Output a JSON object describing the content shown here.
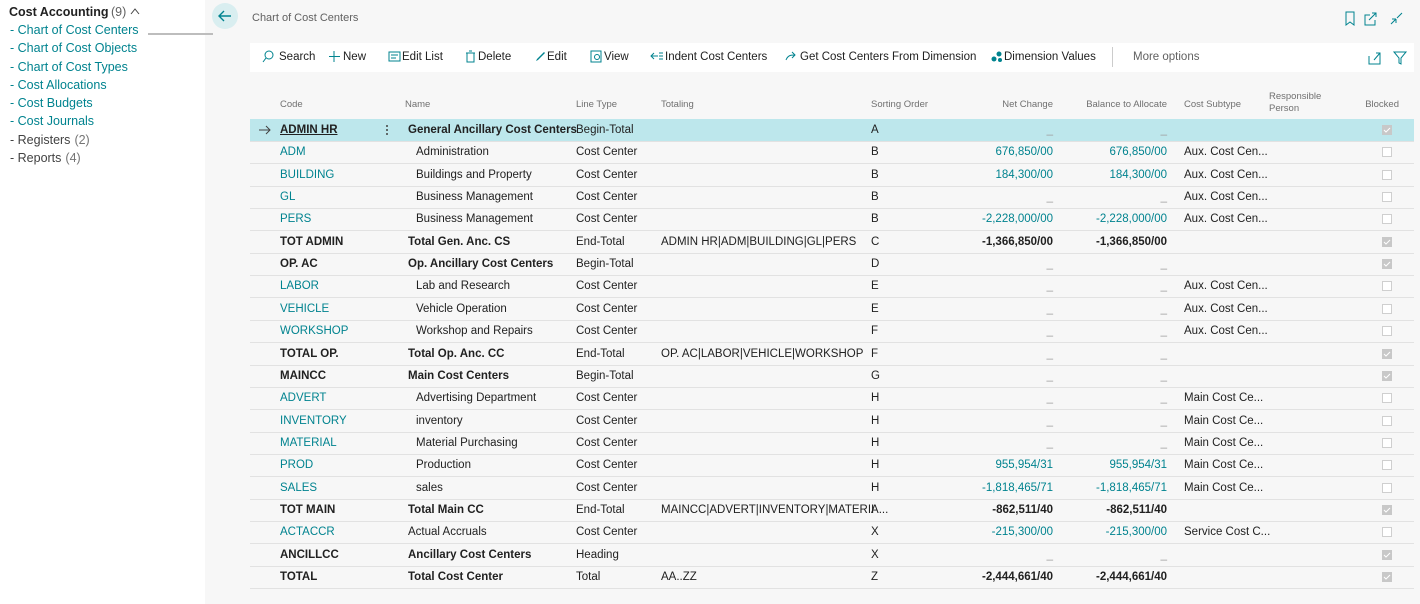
{
  "sidebar": {
    "title": "Cost Accounting",
    "count": "(9)",
    "items": [
      {
        "label": "- Chart of Cost Centers",
        "link": true
      },
      {
        "label": "- Chart of Cost Objects",
        "link": true
      },
      {
        "label": "- Chart of Cost Types",
        "link": true
      },
      {
        "label": "- Cost Allocations",
        "link": true
      },
      {
        "label": "- Cost Budgets",
        "link": true
      },
      {
        "label": "- Cost Journals",
        "link": true
      },
      {
        "label": "- Registers",
        "count": "(2)"
      },
      {
        "label": "- Reports",
        "count": "(4)"
      }
    ]
  },
  "page": {
    "title": "Chart of Cost Centers"
  },
  "toolbar": {
    "actions": [
      "Search",
      "New",
      "Edit List",
      "Delete",
      "Edit",
      "View",
      "Indent Cost Centers",
      "Get Cost Centers From Dimension",
      "Dimension Values"
    ],
    "more": "More options"
  },
  "table": {
    "columns": [
      "Code",
      "Name",
      "Line Type",
      "Totaling",
      "Sorting Order",
      "Net Change",
      "Balance to Allocate",
      "Cost Subtype",
      "Responsible Person",
      "Blocked"
    ],
    "rows": [
      {
        "code": "ADMIN HR",
        "name": "General Ancillary Cost Centers",
        "line_type": "Begin-Total",
        "sorting_order": "A",
        "net_change": "_",
        "balance_to_allocate": "_",
        "blocked": true,
        "selected": true
      },
      {
        "code": "ADM",
        "name": "Administration",
        "line_type": "Cost Center",
        "sorting_order": "B",
        "net_change": "676,850/00",
        "balance_to_allocate": "676,850/00",
        "cost_subtype": "Aux. Cost Cen...",
        "blocked": false
      },
      {
        "code": "BUILDING",
        "name": "Buildings and Property",
        "line_type": "Cost Center",
        "sorting_order": "B",
        "net_change": "184,300/00",
        "balance_to_allocate": "184,300/00",
        "cost_subtype": "Aux. Cost Cen...",
        "blocked": false
      },
      {
        "code": "GL",
        "name": "Business Management",
        "line_type": "Cost Center",
        "sorting_order": "B",
        "net_change": "_",
        "balance_to_allocate": "_",
        "cost_subtype": "Aux. Cost Cen...",
        "blocked": false
      },
      {
        "code": "PERS",
        "name": "Business Management",
        "line_type": "Cost Center",
        "sorting_order": "B",
        "net_change": "-2,228,000/00",
        "balance_to_allocate": "-2,228,000/00",
        "cost_subtype": "Aux. Cost Cen...",
        "blocked": false
      },
      {
        "code": "TOT ADMIN",
        "name": "Total Gen. Anc. CS",
        "line_type": "End-Total",
        "totaling": "ADMIN HR|ADM|BUILDING|GL|PERS",
        "sorting_order": "C",
        "net_change": "-1,366,850/00",
        "balance_to_allocate": "-1,366,850/00",
        "blocked": true
      },
      {
        "code": "OP. AC",
        "name": "Op. Ancillary Cost Centers",
        "line_type": "Begin-Total",
        "sorting_order": "D",
        "net_change": "_",
        "balance_to_allocate": "_",
        "blocked": true
      },
      {
        "code": "LABOR",
        "name": "Lab and Research",
        "line_type": "Cost Center",
        "sorting_order": "E",
        "net_change": "_",
        "balance_to_allocate": "_",
        "cost_subtype": "Aux. Cost Cen...",
        "blocked": false
      },
      {
        "code": "VEHICLE",
        "name": "Vehicle Operation",
        "line_type": "Cost Center",
        "sorting_order": "E",
        "net_change": "_",
        "balance_to_allocate": "_",
        "cost_subtype": "Aux. Cost Cen...",
        "blocked": false
      },
      {
        "code": "WORKSHOP",
        "name": "Workshop and Repairs",
        "line_type": "Cost Center",
        "sorting_order": "F",
        "net_change": "_",
        "balance_to_allocate": "_",
        "cost_subtype": "Aux. Cost Cen...",
        "blocked": false
      },
      {
        "code": "TOTAL OP.",
        "name": "Total Op. Anc. CC",
        "line_type": "End-Total",
        "totaling": "OP. AC|LABOR|VEHICLE|WORKSHOP",
        "sorting_order": "F",
        "net_change": "_",
        "balance_to_allocate": "_",
        "blocked": true
      },
      {
        "code": "MAINCC",
        "name": "Main Cost Centers",
        "line_type": "Begin-Total",
        "sorting_order": "G",
        "net_change": "_",
        "balance_to_allocate": "_",
        "blocked": true
      },
      {
        "code": "ADVERT",
        "name": "Advertising Department",
        "line_type": "Cost Center",
        "sorting_order": "H",
        "net_change": "_",
        "balance_to_allocate": "_",
        "cost_subtype": "Main Cost Ce...",
        "blocked": false
      },
      {
        "code": "INVENTORY",
        "name": "inventory",
        "line_type": "Cost Center",
        "sorting_order": "H",
        "net_change": "_",
        "balance_to_allocate": "_",
        "cost_subtype": "Main Cost Ce...",
        "blocked": false
      },
      {
        "code": "MATERIAL",
        "name": "Material Purchasing",
        "line_type": "Cost Center",
        "sorting_order": "H",
        "net_change": "_",
        "balance_to_allocate": "_",
        "cost_subtype": "Main Cost Ce...",
        "blocked": false
      },
      {
        "code": "PROD",
        "name": "Production",
        "line_type": "Cost Center",
        "sorting_order": "H",
        "net_change": "955,954/31",
        "balance_to_allocate": "955,954/31",
        "cost_subtype": "Main Cost Ce...",
        "blocked": false
      },
      {
        "code": "SALES",
        "name": "sales",
        "line_type": "Cost Center",
        "sorting_order": "H",
        "net_change": "-1,818,465/71",
        "balance_to_allocate": "-1,818,465/71",
        "cost_subtype": "Main Cost Ce...",
        "blocked": false
      },
      {
        "code": "TOT MAIN",
        "name": "Total Main CC",
        "line_type": "End-Total",
        "totaling": "MAINCC|ADVERT|INVENTORY|MATERIA...",
        "sorting_order": "I",
        "net_change": "-862,511/40",
        "balance_to_allocate": "-862,511/40",
        "blocked": true
      },
      {
        "code": "ACTACCR",
        "name": "Actual Accruals",
        "line_type": "Cost Center",
        "sorting_order": "X",
        "net_change": "-215,300/00",
        "balance_to_allocate": "-215,300/00",
        "cost_subtype": "Service Cost C...",
        "blocked": false
      },
      {
        "code": "ANCILLCC",
        "name": "Ancillary Cost Centers",
        "line_type": "Heading",
        "sorting_order": "X",
        "net_change": "_",
        "balance_to_allocate": "_",
        "blocked": true
      },
      {
        "code": "TOTAL",
        "name": "Total Cost Center",
        "line_type": "Total",
        "totaling": "AA..ZZ",
        "sorting_order": "Z",
        "net_change": "-2,444,661/40",
        "balance_to_allocate": "-2,444,661/40",
        "blocked": true
      }
    ]
  }
}
